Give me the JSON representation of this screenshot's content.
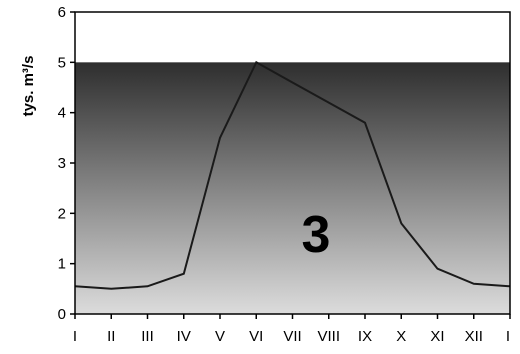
{
  "chart_data": {
    "type": "line",
    "x": [
      "I",
      "II",
      "III",
      "IV",
      "V",
      "VI",
      "VII",
      "VIII",
      "IX",
      "X",
      "XI",
      "XII",
      "I"
    ],
    "series": [
      {
        "values": [
          0.55,
          0.5,
          0.55,
          0.8,
          3.5,
          5.0,
          4.6,
          4.2,
          3.8,
          1.8,
          0.9,
          0.6,
          0.55
        ]
      }
    ],
    "ylabel": "tys. m³/s",
    "yticks": [
      0,
      1,
      2,
      3,
      4,
      5,
      6
    ],
    "ylim": [
      0,
      6
    ],
    "shaded_band": [
      0,
      5
    ],
    "annotation": "3",
    "grid": false,
    "line_color": "#1a1a1a",
    "shade_top_color": "#2e2e2e",
    "shade_bottom_color": "#dcdcdc"
  }
}
